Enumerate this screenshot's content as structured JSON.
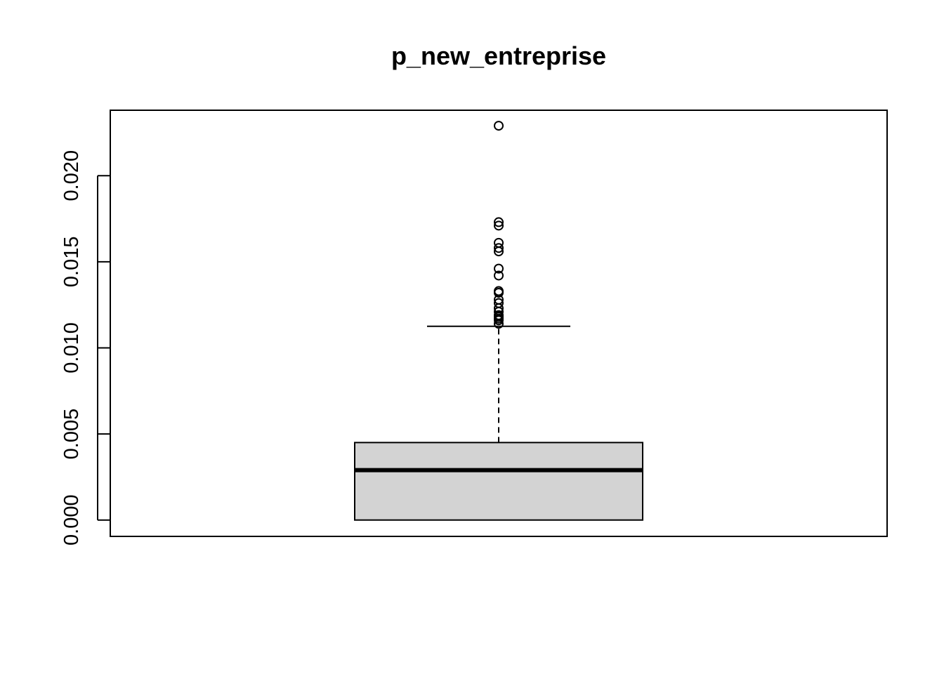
{
  "chart_data": {
    "type": "boxplot",
    "title": "p_new_entreprise",
    "xlabel": "",
    "ylabel": "",
    "ylim": [
      -0.00095,
      0.0238
    ],
    "yticks": [
      0.0,
      0.005,
      0.01,
      0.015,
      0.02
    ],
    "ytick_labels": [
      "0.000",
      "0.005",
      "0.010",
      "0.015",
      "0.020"
    ],
    "grid": false,
    "box": {
      "min": 0.0,
      "q1": 0.0,
      "median": 0.0029,
      "q3": 0.0045,
      "whisker_high": 0.01125,
      "fill_color": "#d3d3d3"
    },
    "outliers": [
      0.0114,
      0.0116,
      0.0117,
      0.0118,
      0.0119,
      0.0121,
      0.0123,
      0.0126,
      0.0128,
      0.0132,
      0.0133,
      0.0142,
      0.0146,
      0.0156,
      0.0158,
      0.0161,
      0.0171,
      0.0173,
      0.0229
    ]
  }
}
